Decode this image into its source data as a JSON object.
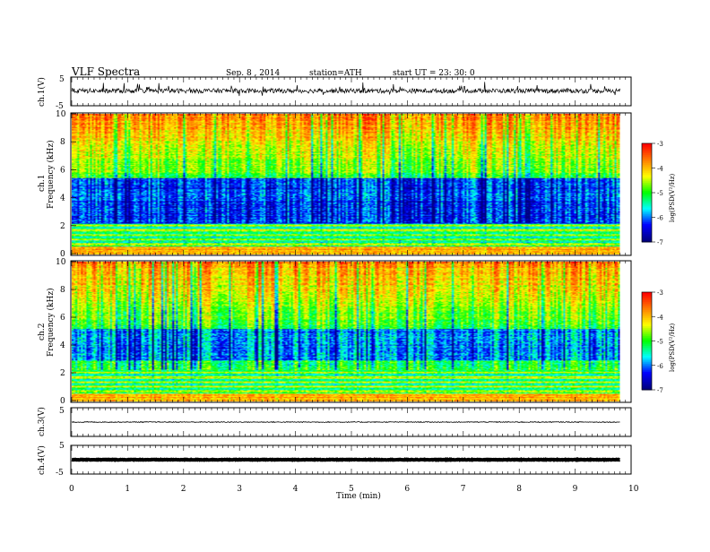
{
  "header": {
    "title": "VLF Spectra",
    "date": "Sep. 8 , 2014",
    "station": "station=ATH",
    "start": "start  UT =  23: 30: 0"
  },
  "chart_data": [
    {
      "id": "ch1-waveform",
      "type": "line",
      "ylabel": "ch.1(V)",
      "yticks": [
        "5",
        "-5"
      ],
      "ylim": [
        -5,
        5
      ],
      "xlim": [
        0,
        10
      ],
      "note": "noisy waveform around ~0.5 V with spikes, spans 0 to ~9.8 min"
    },
    {
      "id": "ch1-spectrogram",
      "type": "heatmap",
      "ylabel": "ch.1\nFrequency (kHz)",
      "ylabel_lines": [
        "ch.1",
        "Frequency (kHz)"
      ],
      "yticks": [
        "0",
        "2",
        "4",
        "6",
        "8",
        "10"
      ],
      "ylim": [
        0,
        10
      ],
      "xlim": [
        0,
        10
      ],
      "data_end_min": 9.8,
      "colorbar": {
        "label": "log(PSD(V²/Hz)",
        "ticks": [
          "-3",
          "-4",
          "-5",
          "-6",
          "-7"
        ],
        "range": [
          -7,
          -3
        ]
      }
    },
    {
      "id": "ch2-spectrogram",
      "type": "heatmap",
      "ylabel_lines": [
        "ch.2",
        "Frequency (kHz)"
      ],
      "yticks": [
        "0",
        "2",
        "4",
        "6",
        "8",
        "10"
      ],
      "ylim": [
        0,
        10
      ],
      "xlim": [
        0,
        10
      ],
      "data_end_min": 9.8,
      "colorbar": {
        "label": "log(PSD(V²/Hz)",
        "ticks": [
          "-3",
          "-4",
          "-5",
          "-6",
          "-7"
        ],
        "range": [
          -7,
          -3
        ]
      }
    },
    {
      "id": "ch3-waveform",
      "type": "line",
      "ylabel": "ch.3(V)",
      "yticks": [
        "5"
      ],
      "ylim": [
        -5,
        5
      ],
      "xlim": [
        0,
        10
      ],
      "level": 0
    },
    {
      "id": "ch4-waveform",
      "type": "line",
      "ylabel": "ch.4(V)",
      "yticks": [
        "5",
        "-5"
      ],
      "ylim": [
        -5,
        5
      ],
      "xlim": [
        0,
        10
      ],
      "level": 0
    }
  ],
  "xaxis": {
    "label": "Time  (min)",
    "ticks": [
      "0",
      "1",
      "2",
      "3",
      "4",
      "5",
      "6",
      "7",
      "8",
      "9",
      "10"
    ]
  },
  "colors": {
    "scale": [
      "#00007f",
      "#0000ff",
      "#00ffff",
      "#00ff00",
      "#ffff00",
      "#ff7f00",
      "#ff0000",
      "#ffffff"
    ]
  }
}
